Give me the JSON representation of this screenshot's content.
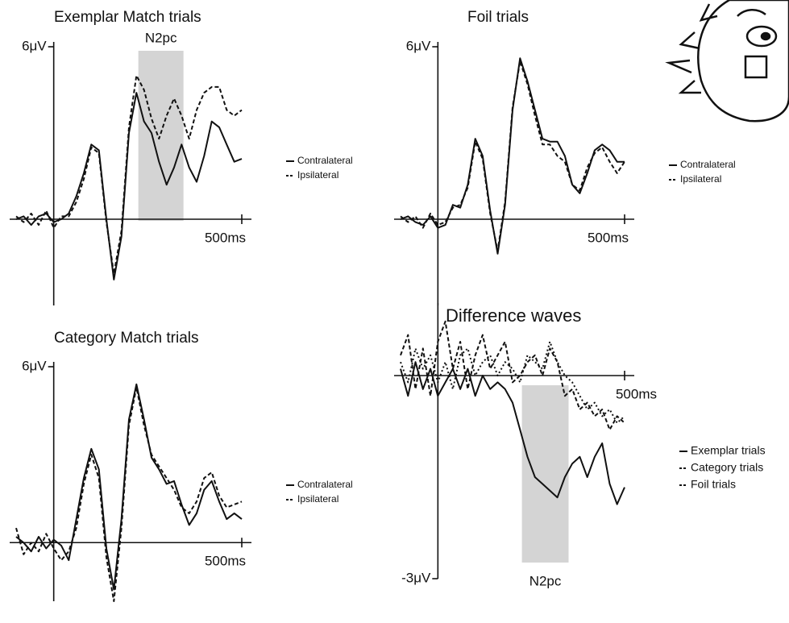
{
  "chart_data": [
    {
      "type": "line",
      "title": "Exemplar Match trials",
      "x": [
        -100,
        -80,
        -60,
        -40,
        -20,
        0,
        20,
        40,
        60,
        80,
        100,
        120,
        140,
        160,
        180,
        200,
        220,
        240,
        260,
        280,
        300,
        320,
        340,
        360,
        380,
        400,
        420,
        440,
        460,
        480,
        500
      ],
      "series": [
        {
          "name": "Contralateral",
          "color": "#111111",
          "dash": "solid",
          "values": [
            0,
            0.1,
            -0.2,
            0.1,
            0.2,
            -0.1,
            0,
            0.2,
            0.8,
            1.6,
            2.6,
            2.4,
            0,
            -2.1,
            -0.6,
            3,
            4.4,
            3.4,
            3,
            2,
            1.2,
            1.8,
            2.6,
            1.8,
            1.3,
            2.2,
            3.4,
            3.2,
            2.6,
            2,
            2.1
          ]
        },
        {
          "name": "Ipsilateral",
          "color": "#111111",
          "dash": "dashed",
          "values": [
            0.1,
            -0.1,
            0.2,
            -0.2,
            0.3,
            -0.3,
            0.1,
            0.1,
            0.6,
            1.4,
            2.5,
            2.3,
            -0.1,
            -1.9,
            -0.4,
            3.2,
            5.0,
            4.5,
            3.5,
            2.8,
            3.6,
            4.2,
            3.6,
            2.8,
            3.8,
            4.4,
            4.6,
            4.6,
            3.8,
            3.6,
            3.8
          ]
        }
      ],
      "xlim": [
        -100,
        500
      ],
      "ylim": [
        -3,
        6
      ],
      "xticks": [
        {
          "value": 500,
          "label": "500ms"
        }
      ],
      "yticks": [
        {
          "value": 6,
          "label": "6μV"
        }
      ],
      "legend": "right",
      "highlight": {
        "label": "N2pc",
        "range": [
          225,
          345
        ]
      }
    },
    {
      "type": "line",
      "title": "Foil trials",
      "x": [
        -100,
        -80,
        -60,
        -40,
        -20,
        0,
        20,
        40,
        60,
        80,
        100,
        120,
        140,
        160,
        180,
        200,
        220,
        240,
        260,
        280,
        300,
        320,
        340,
        360,
        380,
        400,
        420,
        440,
        460,
        480,
        500
      ],
      "series": [
        {
          "name": "Contralateral",
          "color": "#111111",
          "dash": "solid",
          "values": [
            0,
            0.1,
            -0.1,
            -0.2,
            0.1,
            -0.3,
            -0.2,
            0.5,
            0.4,
            1.2,
            2.8,
            2.2,
            0.3,
            -1.2,
            0.5,
            3.8,
            5.6,
            4.8,
            3.8,
            2.8,
            2.7,
            2.7,
            2.2,
            1.2,
            0.9,
            1.6,
            2.4,
            2.6,
            2.4,
            2.0,
            2.0
          ]
        },
        {
          "name": "Ipsilateral",
          "color": "#111111",
          "dash": "dashed",
          "values": [
            0.1,
            -0.1,
            0.1,
            -0.3,
            0.2,
            -0.2,
            -0.1,
            0.4,
            0.5,
            1.1,
            2.7,
            2.1,
            0.2,
            -1.1,
            0.6,
            3.9,
            5.5,
            4.7,
            3.6,
            2.6,
            2.6,
            2.2,
            2.0,
            1.2,
            1.0,
            1.8,
            2.3,
            2.5,
            2.0,
            1.6,
            2.0
          ]
        }
      ],
      "xlim": [
        -100,
        500
      ],
      "ylim": [
        -3,
        6
      ],
      "xticks": [
        {
          "value": 500,
          "label": "500ms"
        }
      ],
      "yticks": [
        {
          "value": 6,
          "label": "6μV"
        }
      ],
      "legend": "right"
    },
    {
      "type": "line",
      "title": "Category Match trials",
      "x": [
        -100,
        -80,
        -60,
        -40,
        -20,
        0,
        20,
        40,
        60,
        80,
        100,
        120,
        140,
        160,
        180,
        200,
        220,
        240,
        260,
        280,
        300,
        320,
        340,
        360,
        380,
        400,
        420,
        440,
        460,
        480,
        500
      ],
      "series": [
        {
          "name": "Contralateral",
          "color": "#111111",
          "dash": "solid",
          "values": [
            0.2,
            0,
            -0.3,
            0.2,
            -0.2,
            0.1,
            -0.1,
            -0.6,
            0.8,
            2.2,
            3.2,
            2.5,
            -0.2,
            -1.6,
            0.8,
            4.2,
            5.4,
            4.2,
            2.9,
            2.5,
            2.0,
            2.1,
            1.3,
            0.6,
            1.0,
            1.8,
            2.1,
            1.4,
            0.8,
            1.0,
            0.8
          ]
        },
        {
          "name": "Ipsilateral",
          "color": "#111111",
          "dash": "dashed",
          "values": [
            0.5,
            -0.4,
            0,
            -0.3,
            0.3,
            -0.2,
            -0.6,
            -0.3,
            0.5,
            2.0,
            3.0,
            2.2,
            -0.5,
            -2.0,
            0.5,
            4.0,
            5.3,
            4.0,
            3.0,
            2.6,
            2.2,
            1.8,
            1.2,
            1.0,
            1.4,
            2.2,
            2.4,
            1.6,
            1.2,
            1.3,
            1.4
          ]
        }
      ],
      "xlim": [
        -100,
        500
      ],
      "ylim": [
        -2,
        6
      ],
      "xticks": [
        {
          "value": 500,
          "label": "500ms"
        }
      ],
      "yticks": [
        {
          "value": 6,
          "label": "6μV"
        }
      ],
      "legend": "right"
    },
    {
      "type": "line",
      "title": "Difference waves",
      "x": [
        -100,
        -80,
        -60,
        -40,
        -20,
        0,
        20,
        40,
        60,
        80,
        100,
        120,
        140,
        160,
        180,
        200,
        220,
        240,
        260,
        280,
        300,
        320,
        340,
        360,
        380,
        400,
        420,
        440,
        460,
        480,
        500
      ],
      "series": [
        {
          "name": "Exemplar trials",
          "color": "#111111",
          "dash": "solid",
          "values": [
            0.1,
            -0.3,
            0.2,
            -0.2,
            0.1,
            -0.3,
            -0.1,
            0.1,
            -0.2,
            0.1,
            -0.3,
            0,
            -0.2,
            -0.1,
            -0.2,
            -0.4,
            -0.8,
            -1.2,
            -1.5,
            -1.6,
            -1.7,
            -1.8,
            -1.5,
            -1.3,
            -1.2,
            -1.5,
            -1.2,
            -1.0,
            -1.6,
            -1.9,
            -1.65
          ]
        },
        {
          "name": "Category trials",
          "color": "#111111",
          "dash": "dashed",
          "values": [
            0.3,
            0.6,
            -0.2,
            0.4,
            -0.3,
            0.5,
            0.8,
            0.1,
            0.5,
            -0.2,
            0.3,
            0.6,
            0.1,
            0.3,
            0.5,
            -0.1,
            0,
            0.2,
            0.3,
            0,
            0.4,
            0.2,
            -0.3,
            -0.2,
            -0.5,
            -0.4,
            -0.6,
            -0.5,
            -0.8,
            -0.6,
            -0.7
          ]
        },
        {
          "name": "Foil trials",
          "color": "#111111",
          "dash": "dotted",
          "values": [
            0.2,
            -0.1,
            0.4,
            0.1,
            0.3,
            -0.1,
            0.2,
            -0.2,
            0.3,
            0.4,
            0,
            0.2,
            0.3,
            0,
            0.2,
            0.1,
            -0.1,
            0.3,
            0.2,
            0.1,
            0.5,
            0.2,
            0,
            -0.1,
            -0.3,
            -0.5,
            -0.4,
            -0.6,
            -0.5,
            -0.7,
            -0.6
          ]
        }
      ],
      "xlim": [
        -100,
        500
      ],
      "ylim": [
        -3,
        1
      ],
      "xticks": [
        {
          "value": 500,
          "label": "500ms"
        }
      ],
      "yticks": [
        {
          "value": -3,
          "label": "-3μV"
        }
      ],
      "legend": "right",
      "highlight": {
        "label": "N2pc",
        "range": [
          225,
          350
        ]
      }
    }
  ]
}
